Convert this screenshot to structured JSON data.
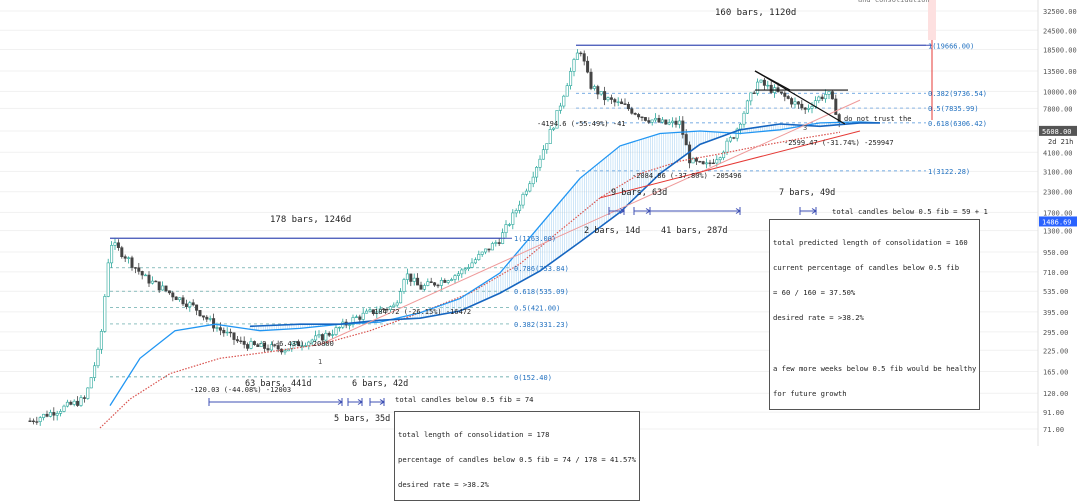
{
  "chart_data": {
    "type": "candlestick",
    "scale": "log",
    "y_axis": {
      "ticks": [
        "32500.00",
        "24500.00",
        "18500.00",
        "13500.00",
        "10000.00",
        "7800.00",
        "5600.00",
        "4100.00",
        "3100.00",
        "2300.00",
        "1700.00",
        "1300.00",
        "950.00",
        "710.00",
        "535.00",
        "395.00",
        "295.00",
        "225.00",
        "165.00",
        "120.00",
        "91.00",
        "71.00"
      ],
      "tick_values": [
        32500,
        24500,
        18500,
        13500,
        10000,
        7800,
        5600,
        4100,
        3100,
        2300,
        1700,
        1300,
        950,
        710,
        535,
        395,
        295,
        225,
        165,
        120,
        91,
        71
      ],
      "price_label": "5608.00",
      "price_value": 5608,
      "timer_label": "2d 21h",
      "marker_label": "1486.69",
      "marker_value": 1486.69
    },
    "fib_upper": [
      {
        "label": "1(19666.00)",
        "value": 19666
      },
      {
        "label": "0.382(9736.54)",
        "value": 9736.54
      },
      {
        "label": "0.5(7835.99)",
        "value": 7835.99
      },
      {
        "label": "0.618(6306.42)",
        "value": 6306.42
      },
      {
        "label": "1(3122.28)",
        "value": 3122.28
      }
    ],
    "fib_lower": [
      {
        "label": "1(1163.00)",
        "value": 1163
      },
      {
        "label": "0.786(753.84)",
        "value": 753.84
      },
      {
        "label": "0.618(535.09)",
        "value": 535.09
      },
      {
        "label": "0.5(421.00)",
        "value": 421
      },
      {
        "label": "0.382(331.23)",
        "value": 331.23
      },
      {
        "label": "0(152.40)",
        "value": 152.4
      }
    ],
    "annotations": {
      "top_label": "160 bars, 1120d",
      "left_label": "178 bars, 1246d",
      "upper_drop": "-4194.6 (-55.49%) -41",
      "upper_low": "-2084.86 (-37.80%) -205496",
      "upper_recent": "-2599.47 (-31.74%) -259947",
      "upper_warning": "do not trust the",
      "lower_drop": "-184.72 (-26.15%) -16472",
      "lower_low": "-120.03 (-44.08%) -12003",
      "lower_early": "-9 (-6.43%) -20800",
      "m_63": "63 bars, 441d",
      "m_6": "6 bars, 42d",
      "m_5": "5 bars, 35d",
      "m_9": "9 bars, 63d",
      "m_2": "2 bars, 14d",
      "m_41": "41 bars, 287d",
      "m_7": "7 bars, 49d",
      "below_lower": "total candles below 0.5 fib = 74",
      "below_upper": "total candles below 0.5 fib = 59 + 1",
      "wave_1": "1",
      "wave_3": "3",
      "top_right": "and consolidation"
    },
    "note_lower": [
      "total length of consolidation = 178",
      "percentage of candles below 0.5 fib = 74 / 178 = 41.57%",
      "desired rate = >38.2%"
    ],
    "note_upper": [
      "total predicted length of consolidation = 160",
      "current percentage of candles below 0.5 fib",
      "= 60 / 160 = 37.50%",
      "desired rate = >38.2%",
      "",
      "a few more weeks below 0.5 fib would be healthy",
      "for future growth"
    ]
  },
  "colors": {
    "up": "#26a69a",
    "down": "#444444",
    "fib_upper": "#4a90d9",
    "ma_red": "#d9534f",
    "ma_blue": "#2196f3",
    "ribbon": "#8ec6f0",
    "price_tag": "#555555",
    "marker_tag": "#2962ff",
    "range_red": "#e53935",
    "range_blue": "#3f51b5"
  }
}
